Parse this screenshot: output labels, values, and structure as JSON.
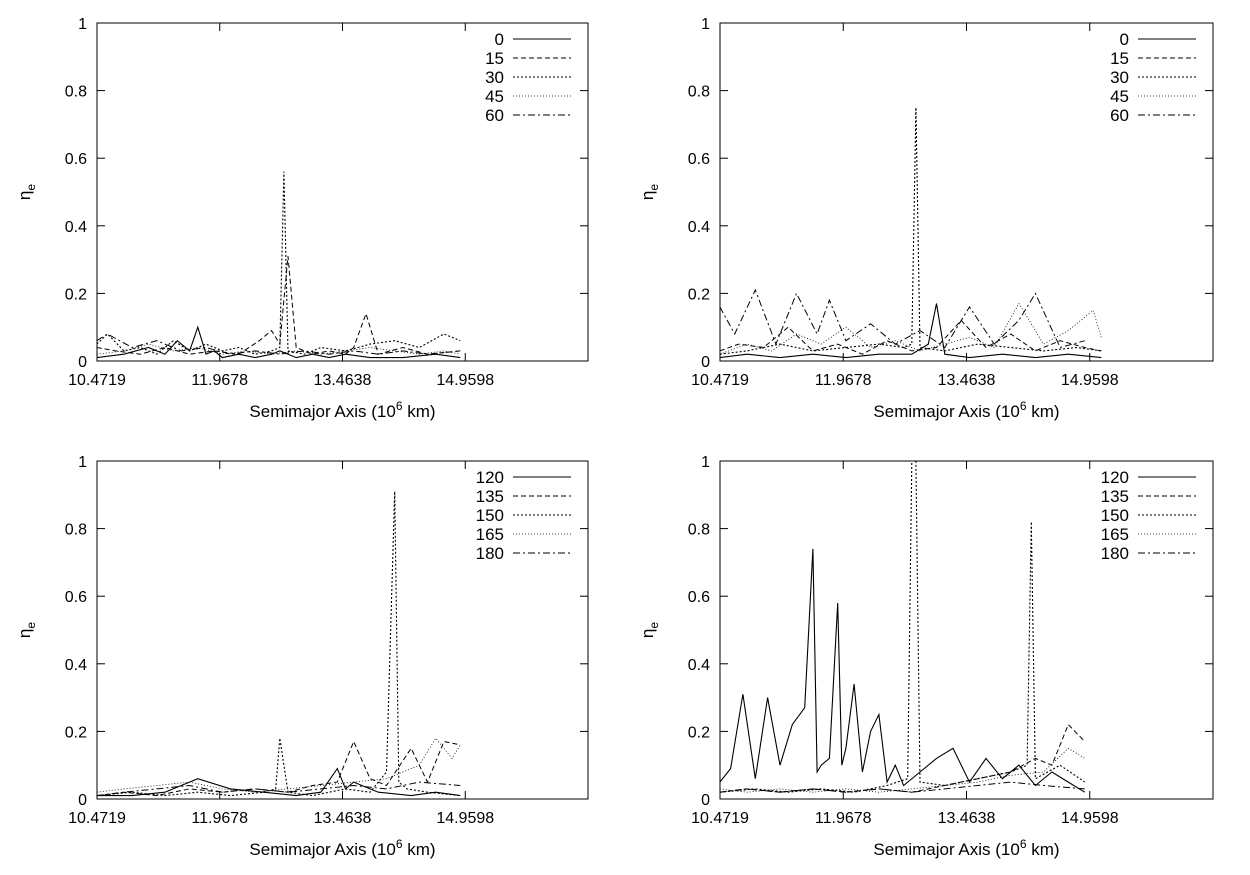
{
  "chart_data": [
    {
      "type": "line",
      "xlabel": "Semimajor Axis (10^6 km)",
      "ylabel": "η_e",
      "xlim": [
        10.4719,
        16.4558
      ],
      "ylim": [
        0,
        1
      ],
      "x_ticks": [
        "10.4719",
        "11.9678",
        "13.4638",
        "14.9598"
      ],
      "y_ticks": [
        "0",
        "0.2",
        "0.4",
        "0.6",
        "0.8",
        "1"
      ],
      "legend_position": "top-right",
      "series": [
        {
          "name": "0",
          "x": [
            10.47,
            10.8,
            11.1,
            11.3,
            11.45,
            11.6,
            11.7,
            11.8,
            11.9,
            12.0,
            12.2,
            12.4,
            12.6,
            12.7,
            12.9,
            13.1,
            13.3,
            13.5,
            13.8,
            14.2,
            14.6,
            14.9
          ],
          "values": [
            0.01,
            0.02,
            0.04,
            0.02,
            0.06,
            0.03,
            0.1,
            0.02,
            0.03,
            0.01,
            0.02,
            0.01,
            0.02,
            0.03,
            0.01,
            0.02,
            0.01,
            0.02,
            0.01,
            0.01,
            0.02,
            0.01
          ]
        },
        {
          "name": "15",
          "x": [
            10.47,
            10.7,
            11.0,
            11.3,
            11.6,
            11.9,
            12.2,
            12.45,
            12.6,
            12.7,
            12.8,
            12.9,
            13.1,
            13.3,
            13.5,
            13.6,
            13.75,
            13.9,
            14.2,
            14.5,
            14.9
          ],
          "values": [
            0.04,
            0.03,
            0.02,
            0.04,
            0.02,
            0.03,
            0.02,
            0.06,
            0.09,
            0.05,
            0.31,
            0.04,
            0.02,
            0.03,
            0.02,
            0.04,
            0.14,
            0.02,
            0.04,
            0.02,
            0.03
          ]
        },
        {
          "name": "30",
          "x": [
            10.47,
            10.6,
            10.8,
            11.0,
            11.2,
            11.4,
            11.6,
            11.8,
            12.0,
            12.2,
            12.4,
            12.6,
            12.7,
            12.75,
            12.8,
            13.0,
            13.2,
            13.5,
            13.8,
            14.1,
            14.4,
            14.7,
            14.9
          ],
          "values": [
            0.05,
            0.08,
            0.03,
            0.04,
            0.02,
            0.06,
            0.03,
            0.05,
            0.03,
            0.04,
            0.02,
            0.03,
            0.04,
            0.56,
            0.03,
            0.02,
            0.04,
            0.03,
            0.05,
            0.06,
            0.04,
            0.08,
            0.06
          ]
        },
        {
          "name": "45",
          "x": [
            10.47,
            10.8,
            11.1,
            11.4,
            11.7,
            12.0,
            12.3,
            12.6,
            12.9,
            13.2,
            13.5,
            13.8,
            14.1,
            14.4,
            14.7,
            14.9
          ],
          "values": [
            0.02,
            0.03,
            0.05,
            0.03,
            0.04,
            0.02,
            0.03,
            0.02,
            0.03,
            0.02,
            0.03,
            0.04,
            0.03,
            0.02,
            0.03,
            0.02
          ]
        },
        {
          "name": "60",
          "x": [
            10.47,
            10.6,
            10.9,
            11.2,
            11.5,
            11.8,
            12.1,
            12.4,
            12.7,
            13.0,
            13.3,
            13.6,
            13.9,
            14.2,
            14.5,
            14.9
          ],
          "values": [
            0.06,
            0.08,
            0.04,
            0.06,
            0.03,
            0.04,
            0.02,
            0.03,
            0.02,
            0.03,
            0.02,
            0.03,
            0.02,
            0.03,
            0.02,
            0.03
          ]
        }
      ]
    },
    {
      "type": "line",
      "xlabel": "Semimajor Axis (10^6 km)",
      "ylabel": "η_e",
      "xlim": [
        10.4719,
        16.4558
      ],
      "ylim": [
        0,
        1
      ],
      "x_ticks": [
        "10.4719",
        "11.9678",
        "13.4638",
        "14.9598"
      ],
      "y_ticks": [
        "0",
        "0.2",
        "0.4",
        "0.6",
        "0.8",
        "1"
      ],
      "legend_position": "top-right",
      "series": [
        {
          "name": "0",
          "x": [
            10.47,
            10.8,
            11.2,
            11.6,
            12.0,
            12.4,
            12.8,
            13.0,
            13.1,
            13.2,
            13.5,
            13.9,
            14.3,
            14.7,
            15.1
          ],
          "values": [
            0.01,
            0.02,
            0.01,
            0.02,
            0.01,
            0.02,
            0.02,
            0.05,
            0.17,
            0.02,
            0.01,
            0.02,
            0.01,
            0.02,
            0.01
          ]
        },
        {
          "name": "15",
          "x": [
            10.47,
            10.7,
            11.0,
            11.3,
            11.6,
            11.9,
            12.2,
            12.5,
            12.8,
            13.1,
            13.4,
            13.7,
            14.0,
            14.3,
            14.6,
            14.9,
            15.1
          ],
          "values": [
            0.03,
            0.05,
            0.04,
            0.1,
            0.03,
            0.05,
            0.02,
            0.06,
            0.03,
            0.04,
            0.12,
            0.04,
            0.08,
            0.03,
            0.06,
            0.04,
            0.03
          ]
        },
        {
          "name": "30",
          "x": [
            10.47,
            10.8,
            11.2,
            11.6,
            12.0,
            12.4,
            12.7,
            12.8,
            12.85,
            12.9,
            13.2,
            13.6,
            14.0,
            14.4,
            14.8,
            15.1
          ],
          "values": [
            0.02,
            0.03,
            0.05,
            0.03,
            0.04,
            0.05,
            0.04,
            0.05,
            0.75,
            0.04,
            0.03,
            0.05,
            0.04,
            0.03,
            0.04,
            0.03
          ]
        },
        {
          "name": "45",
          "x": [
            10.47,
            10.8,
            11.1,
            11.4,
            11.7,
            12.0,
            12.3,
            12.6,
            12.9,
            13.2,
            13.5,
            13.8,
            14.1,
            14.4,
            14.7,
            15.0,
            15.1
          ],
          "values": [
            0.02,
            0.05,
            0.03,
            0.08,
            0.05,
            0.1,
            0.04,
            0.06,
            0.03,
            0.05,
            0.07,
            0.04,
            0.17,
            0.05,
            0.09,
            0.15,
            0.07
          ]
        },
        {
          "name": "60",
          "x": [
            10.47,
            10.65,
            10.9,
            11.15,
            11.4,
            11.65,
            11.8,
            12.0,
            12.3,
            12.6,
            12.9,
            13.2,
            13.5,
            13.8,
            14.1,
            14.3,
            14.6,
            14.9
          ],
          "values": [
            0.16,
            0.08,
            0.21,
            0.05,
            0.2,
            0.08,
            0.18,
            0.06,
            0.11,
            0.05,
            0.09,
            0.04,
            0.16,
            0.05,
            0.12,
            0.2,
            0.04,
            0.06
          ]
        }
      ]
    },
    {
      "type": "line",
      "xlabel": "Semimajor Axis (10^6 km)",
      "ylabel": "η_e",
      "xlim": [
        10.4719,
        16.4558
      ],
      "ylim": [
        0,
        1
      ],
      "x_ticks": [
        "10.4719",
        "11.9678",
        "13.4638",
        "14.9598"
      ],
      "y_ticks": [
        "0",
        "0.2",
        "0.4",
        "0.6",
        "0.8",
        "1"
      ],
      "legend_position": "top-right",
      "series": [
        {
          "name": "120",
          "x": [
            10.47,
            10.9,
            11.3,
            11.7,
            12.1,
            12.5,
            12.9,
            13.2,
            13.4,
            13.5,
            13.6,
            13.9,
            14.3,
            14.6,
            14.9
          ],
          "values": [
            0.01,
            0.01,
            0.02,
            0.06,
            0.03,
            0.02,
            0.01,
            0.02,
            0.09,
            0.03,
            0.05,
            0.02,
            0.01,
            0.02,
            0.01
          ]
        },
        {
          "name": "135",
          "x": [
            10.47,
            10.8,
            11.2,
            11.6,
            12.0,
            12.4,
            12.8,
            13.1,
            13.4,
            13.6,
            13.8,
            14.0,
            14.3,
            14.5,
            14.7,
            14.9
          ],
          "values": [
            0.01,
            0.02,
            0.01,
            0.03,
            0.02,
            0.03,
            0.02,
            0.04,
            0.05,
            0.17,
            0.06,
            0.04,
            0.15,
            0.05,
            0.17,
            0.16
          ]
        },
        {
          "name": "150",
          "x": [
            10.47,
            10.9,
            11.3,
            11.7,
            12.1,
            12.5,
            12.65,
            12.7,
            12.8,
            13.1,
            13.5,
            13.8,
            14.0,
            14.1,
            14.15,
            14.25,
            14.5,
            14.9
          ],
          "values": [
            0.01,
            0.02,
            0.01,
            0.02,
            0.01,
            0.02,
            0.03,
            0.18,
            0.02,
            0.01,
            0.03,
            0.02,
            0.08,
            0.91,
            0.05,
            0.03,
            0.02,
            0.01
          ]
        },
        {
          "name": "165",
          "x": [
            10.47,
            10.8,
            11.2,
            11.6,
            12.0,
            12.4,
            12.8,
            13.2,
            13.6,
            14.0,
            14.4,
            14.6,
            14.8,
            14.9
          ],
          "values": [
            0.02,
            0.03,
            0.04,
            0.05,
            0.03,
            0.02,
            0.03,
            0.04,
            0.05,
            0.06,
            0.1,
            0.18,
            0.12,
            0.16
          ]
        },
        {
          "name": "180",
          "x": [
            10.47,
            10.8,
            11.2,
            11.6,
            12.0,
            12.4,
            12.8,
            13.2,
            13.6,
            14.0,
            14.4,
            14.9
          ],
          "values": [
            0.01,
            0.02,
            0.03,
            0.04,
            0.02,
            0.03,
            0.02,
            0.03,
            0.04,
            0.03,
            0.05,
            0.04
          ]
        }
      ]
    },
    {
      "type": "line",
      "xlabel": "Semimajor Axis (10^6 km)",
      "ylabel": "η_e",
      "xlim": [
        10.4719,
        16.4558
      ],
      "ylim": [
        0,
        1
      ],
      "x_ticks": [
        "10.4719",
        "11.9678",
        "13.4638",
        "14.9598"
      ],
      "y_ticks": [
        "0",
        "0.2",
        "0.4",
        "0.6",
        "0.8",
        "1"
      ],
      "legend_position": "top-right",
      "series": [
        {
          "name": "120",
          "x": [
            10.47,
            10.6,
            10.75,
            10.9,
            11.05,
            11.2,
            11.35,
            11.5,
            11.6,
            11.65,
            11.7,
            11.8,
            11.9,
            11.95,
            12.0,
            12.1,
            12.2,
            12.3,
            12.4,
            12.5,
            12.6,
            12.7,
            12.9,
            13.1,
            13.3,
            13.5,
            13.7,
            13.9,
            14.1,
            14.3,
            14.5,
            14.7,
            14.9
          ],
          "values": [
            0.05,
            0.09,
            0.31,
            0.06,
            0.3,
            0.1,
            0.22,
            0.27,
            0.74,
            0.08,
            0.1,
            0.12,
            0.58,
            0.1,
            0.15,
            0.34,
            0.08,
            0.2,
            0.25,
            0.05,
            0.1,
            0.04,
            0.08,
            0.12,
            0.15,
            0.05,
            0.12,
            0.06,
            0.1,
            0.04,
            0.08,
            0.05,
            0.02
          ]
        },
        {
          "name": "135",
          "x": [
            10.47,
            10.8,
            11.2,
            11.6,
            12.0,
            12.4,
            12.8,
            13.2,
            13.6,
            14.0,
            14.3,
            14.5,
            14.7,
            14.9
          ],
          "values": [
            0.02,
            0.03,
            0.02,
            0.03,
            0.02,
            0.03,
            0.02,
            0.04,
            0.06,
            0.08,
            0.12,
            0.1,
            0.22,
            0.17
          ]
        },
        {
          "name": "150",
          "x": [
            10.47,
            10.9,
            11.3,
            11.7,
            12.1,
            12.5,
            12.75,
            12.8,
            12.85,
            12.9,
            13.2,
            13.6,
            14.0,
            14.2,
            14.25,
            14.3,
            14.6,
            14.9
          ],
          "values": [
            0.02,
            0.03,
            0.02,
            0.03,
            0.02,
            0.04,
            0.06,
            1.0,
            1.0,
            0.05,
            0.04,
            0.06,
            0.08,
            0.1,
            0.82,
            0.06,
            0.1,
            0.05
          ]
        },
        {
          "name": "165",
          "x": [
            10.47,
            10.8,
            11.2,
            11.6,
            12.0,
            12.4,
            12.8,
            13.2,
            13.6,
            14.0,
            14.4,
            14.7,
            14.9
          ],
          "values": [
            0.03,
            0.02,
            0.03,
            0.02,
            0.03,
            0.02,
            0.03,
            0.04,
            0.05,
            0.07,
            0.08,
            0.15,
            0.12
          ]
        },
        {
          "name": "180",
          "x": [
            10.47,
            10.8,
            11.2,
            11.6,
            12.0,
            12.4,
            12.8,
            13.2,
            13.6,
            14.0,
            14.4,
            14.9
          ],
          "values": [
            0.02,
            0.03,
            0.02,
            0.03,
            0.02,
            0.03,
            0.02,
            0.03,
            0.04,
            0.05,
            0.04,
            0.03
          ]
        }
      ]
    }
  ],
  "line_styles": {
    "0": "solid",
    "15": "dashed",
    "30": "dotted-short",
    "45": "dotted-fine",
    "60": "dash-dot",
    "120": "solid",
    "135": "dashed",
    "150": "dotted-short",
    "165": "dotted-fine",
    "180": "dash-dot"
  },
  "ylabel_main": "η",
  "ylabel_sub": "e",
  "xlabel_main": "Semimajor Axis (10",
  "xlabel_sup": "6",
  "xlabel_tail": " km)"
}
